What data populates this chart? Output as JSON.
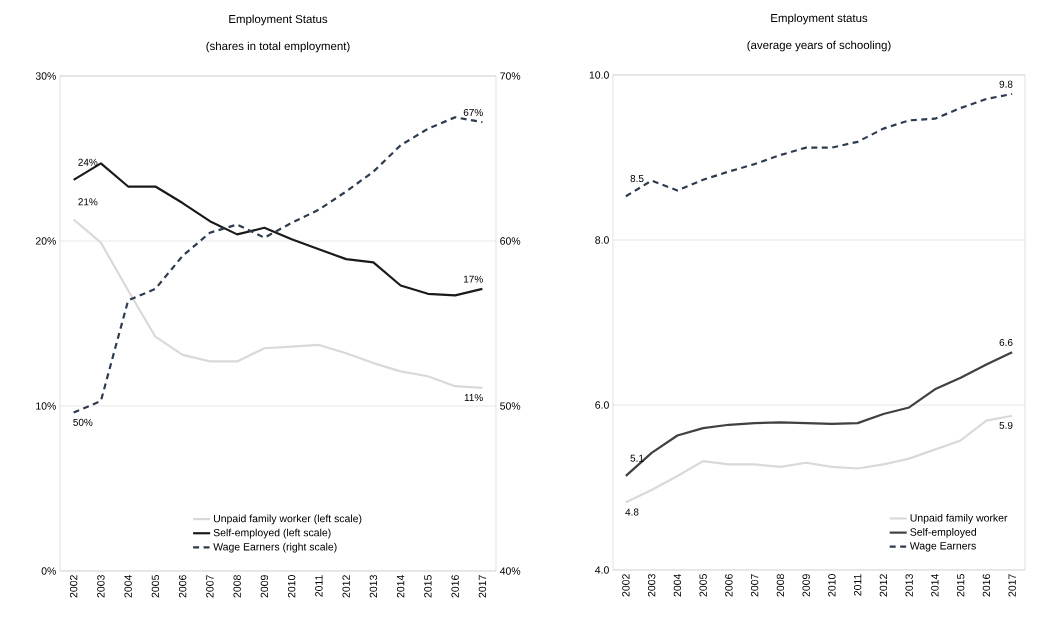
{
  "chart_data": [
    {
      "type": "line",
      "title": "Employment Status",
      "subtitle": "(shares in total employment)",
      "categories": [
        "2002",
        "2003",
        "2004",
        "2005",
        "2006",
        "2007",
        "2008",
        "2009",
        "2010",
        "2011",
        "2012",
        "2013",
        "2014",
        "2015",
        "2016",
        "2017"
      ],
      "ylim": [
        0,
        30
      ],
      "yticks": [
        {
          "value": 0,
          "label": "0%"
        },
        {
          "value": 10,
          "label": "10%"
        },
        {
          "value": 20,
          "label": "20%"
        },
        {
          "value": 30,
          "label": "30%"
        }
      ],
      "y2lim": [
        40,
        70
      ],
      "y2ticks": [
        {
          "value": 40,
          "label": "40%"
        },
        {
          "value": 50,
          "label": "50%"
        },
        {
          "value": 60,
          "label": "60%"
        },
        {
          "value": 70,
          "label": "70%"
        }
      ],
      "grid": "y",
      "legend": "bottom",
      "series": [
        {
          "name": "Unpaid family worker (left scale)",
          "color": "#d9d9d9",
          "line_style": "solid",
          "values": [
            21.3,
            19.9,
            17.0,
            14.2,
            13.1,
            12.7,
            12.7,
            13.5,
            13.6,
            13.7,
            13.2,
            12.6,
            12.1,
            11.8,
            11.2,
            11.1
          ],
          "value_labels": [
            "21%",
            null,
            null,
            null,
            null,
            null,
            null,
            null,
            null,
            null,
            null,
            null,
            null,
            null,
            null,
            "11%"
          ]
        },
        {
          "name": "Self-employed (left scale)",
          "color": "#1a1a1a",
          "line_style": "solid",
          "values": [
            23.7,
            24.7,
            23.3,
            23.3,
            22.3,
            21.2,
            20.4,
            20.8,
            20.1,
            19.5,
            18.9,
            18.7,
            17.3,
            16.8,
            16.7,
            17.1
          ],
          "value_labels": [
            "24%",
            null,
            null,
            null,
            null,
            null,
            null,
            null,
            null,
            null,
            null,
            null,
            null,
            null,
            null,
            "17%"
          ]
        },
        {
          "name": "Wage Earners (right scale)",
          "color": "#2e3b4e",
          "line_style": "dashed",
          "axis": "y2",
          "values": [
            49.6,
            50.3,
            56.4,
            57.1,
            59.1,
            60.5,
            61.0,
            60.2,
            61.1,
            61.9,
            63.0,
            64.2,
            65.8,
            66.8,
            67.5,
            67.2
          ],
          "value_labels": [
            "50%",
            null,
            null,
            null,
            null,
            null,
            null,
            null,
            null,
            null,
            null,
            null,
            null,
            null,
            null,
            "67%"
          ]
        }
      ]
    },
    {
      "type": "line",
      "title": "Employment status",
      "subtitle": "(average years of schooling)",
      "categories": [
        "2002",
        "2003",
        "2004",
        "2005",
        "2006",
        "2007",
        "2008",
        "2009",
        "2010",
        "2011",
        "2012",
        "2013",
        "2014",
        "2015",
        "2016",
        "2017"
      ],
      "ylim": [
        4,
        10
      ],
      "yticks": [
        {
          "value": 4,
          "label": "4.0"
        },
        {
          "value": 6,
          "label": "6.0"
        },
        {
          "value": 8,
          "label": "8.0"
        },
        {
          "value": 10,
          "label": "10.0"
        }
      ],
      "grid": "y",
      "legend": "bottom right",
      "series": [
        {
          "name": "Unpaid family worker",
          "color": "#d9d9d9",
          "line_style": "solid",
          "values": [
            4.82,
            4.97,
            5.14,
            5.32,
            5.28,
            5.28,
            5.25,
            5.3,
            5.25,
            5.23,
            5.28,
            5.35,
            5.46,
            5.57,
            5.81,
            5.87
          ],
          "value_labels": [
            "4.8",
            null,
            null,
            null,
            null,
            null,
            null,
            null,
            null,
            null,
            null,
            null,
            null,
            null,
            null,
            "5.9"
          ]
        },
        {
          "name": "Self-employed",
          "color": "#404040",
          "line_style": "solid",
          "values": [
            5.14,
            5.42,
            5.63,
            5.72,
            5.76,
            5.78,
            5.79,
            5.78,
            5.77,
            5.78,
            5.89,
            5.97,
            6.19,
            6.33,
            6.49,
            6.64
          ],
          "value_labels": [
            "5.1",
            null,
            null,
            null,
            null,
            null,
            null,
            null,
            null,
            null,
            null,
            null,
            null,
            null,
            null,
            "6.6"
          ]
        },
        {
          "name": "Wage Earners",
          "color": "#2e3b4e",
          "line_style": "dashed",
          "values": [
            8.53,
            8.72,
            8.6,
            8.73,
            8.83,
            8.92,
            9.03,
            9.12,
            9.12,
            9.19,
            9.35,
            9.45,
            9.47,
            9.6,
            9.71,
            9.77
          ],
          "value_labels": [
            "8.5",
            null,
            null,
            null,
            null,
            null,
            null,
            null,
            null,
            null,
            null,
            null,
            null,
            null,
            null,
            "9.8"
          ]
        }
      ]
    }
  ]
}
